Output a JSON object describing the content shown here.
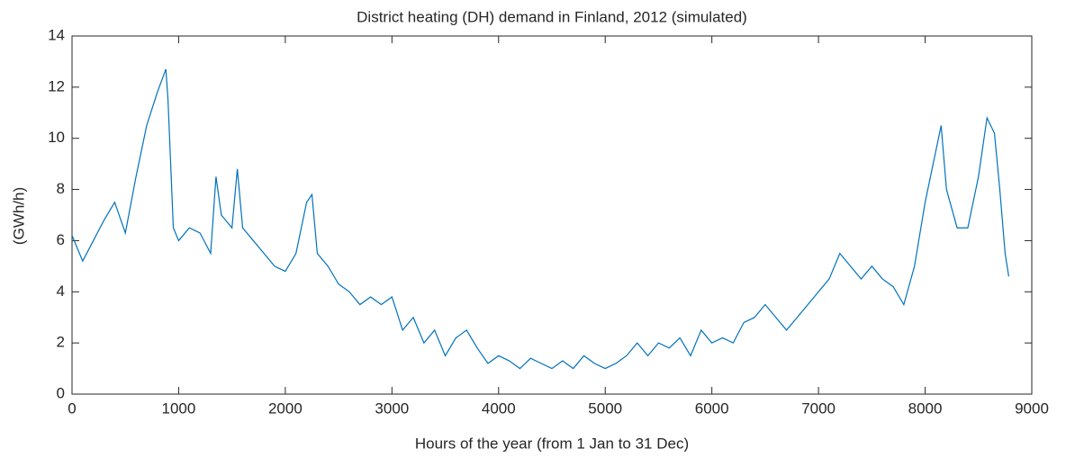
{
  "chart_data": {
    "type": "line",
    "title": "District heating (DH) demand in Finland, 2012 (simulated)",
    "x_label": "Hours of the year (from 1 Jan to 31 Dec)",
    "y_label": "(GWh/h)",
    "x": [
      0,
      100,
      200,
      300,
      400,
      500,
      600,
      700,
      800,
      880,
      900,
      950,
      1000,
      1100,
      1200,
      1300,
      1350,
      1400,
      1500,
      1550,
      1600,
      1700,
      1800,
      1900,
      2000,
      2100,
      2200,
      2250,
      2300,
      2400,
      2500,
      2600,
      2700,
      2800,
      2900,
      3000,
      3100,
      3200,
      3300,
      3400,
      3500,
      3600,
      3700,
      3800,
      3900,
      4000,
      4100,
      4200,
      4300,
      4400,
      4500,
      4600,
      4700,
      4800,
      4900,
      5000,
      5100,
      5200,
      5300,
      5400,
      5500,
      5600,
      5700,
      5800,
      5900,
      6000,
      6100,
      6200,
      6300,
      6400,
      6500,
      6600,
      6700,
      6800,
      6900,
      7000,
      7100,
      7200,
      7300,
      7400,
      7500,
      7600,
      7700,
      7800,
      7900,
      8000,
      8100,
      8150,
      8200,
      8300,
      8400,
      8500,
      8580,
      8650,
      8700,
      8750,
      8784
    ],
    "series": [
      {
        "name": "DH demand",
        "color": "#0072bd",
        "values": [
          6.2,
          5.2,
          6.0,
          6.8,
          7.5,
          6.3,
          8.5,
          10.5,
          11.8,
          12.7,
          11.5,
          6.5,
          6.0,
          6.5,
          6.3,
          5.5,
          8.5,
          7.0,
          6.5,
          8.8,
          6.5,
          6.0,
          5.5,
          5.0,
          4.8,
          5.5,
          7.5,
          7.8,
          5.5,
          5.0,
          4.3,
          4.0,
          3.5,
          3.8,
          3.5,
          3.8,
          2.5,
          3.0,
          2.0,
          2.5,
          1.5,
          2.2,
          2.5,
          1.8,
          1.2,
          1.5,
          1.3,
          1.0,
          1.4,
          1.2,
          1.0,
          1.3,
          1.0,
          1.5,
          1.2,
          1.0,
          1.2,
          1.5,
          2.0,
          1.5,
          2.0,
          1.8,
          2.2,
          1.5,
          2.5,
          2.0,
          2.2,
          2.0,
          2.8,
          3.0,
          3.5,
          3.0,
          2.5,
          3.0,
          3.5,
          4.0,
          4.5,
          5.5,
          5.0,
          4.5,
          5.0,
          4.5,
          4.2,
          3.5,
          5.0,
          7.5,
          9.5,
          10.5,
          8.0,
          6.5,
          6.5,
          8.5,
          10.8,
          10.2,
          8.0,
          5.5,
          4.6
        ]
      }
    ],
    "xlim": [
      0,
      9000
    ],
    "xticks": [
      0,
      1000,
      2000,
      3000,
      4000,
      5000,
      6000,
      7000,
      8000,
      9000
    ],
    "ylim": [
      0,
      14
    ],
    "yticks": [
      0,
      2,
      4,
      6,
      8,
      10,
      12,
      14
    ]
  }
}
